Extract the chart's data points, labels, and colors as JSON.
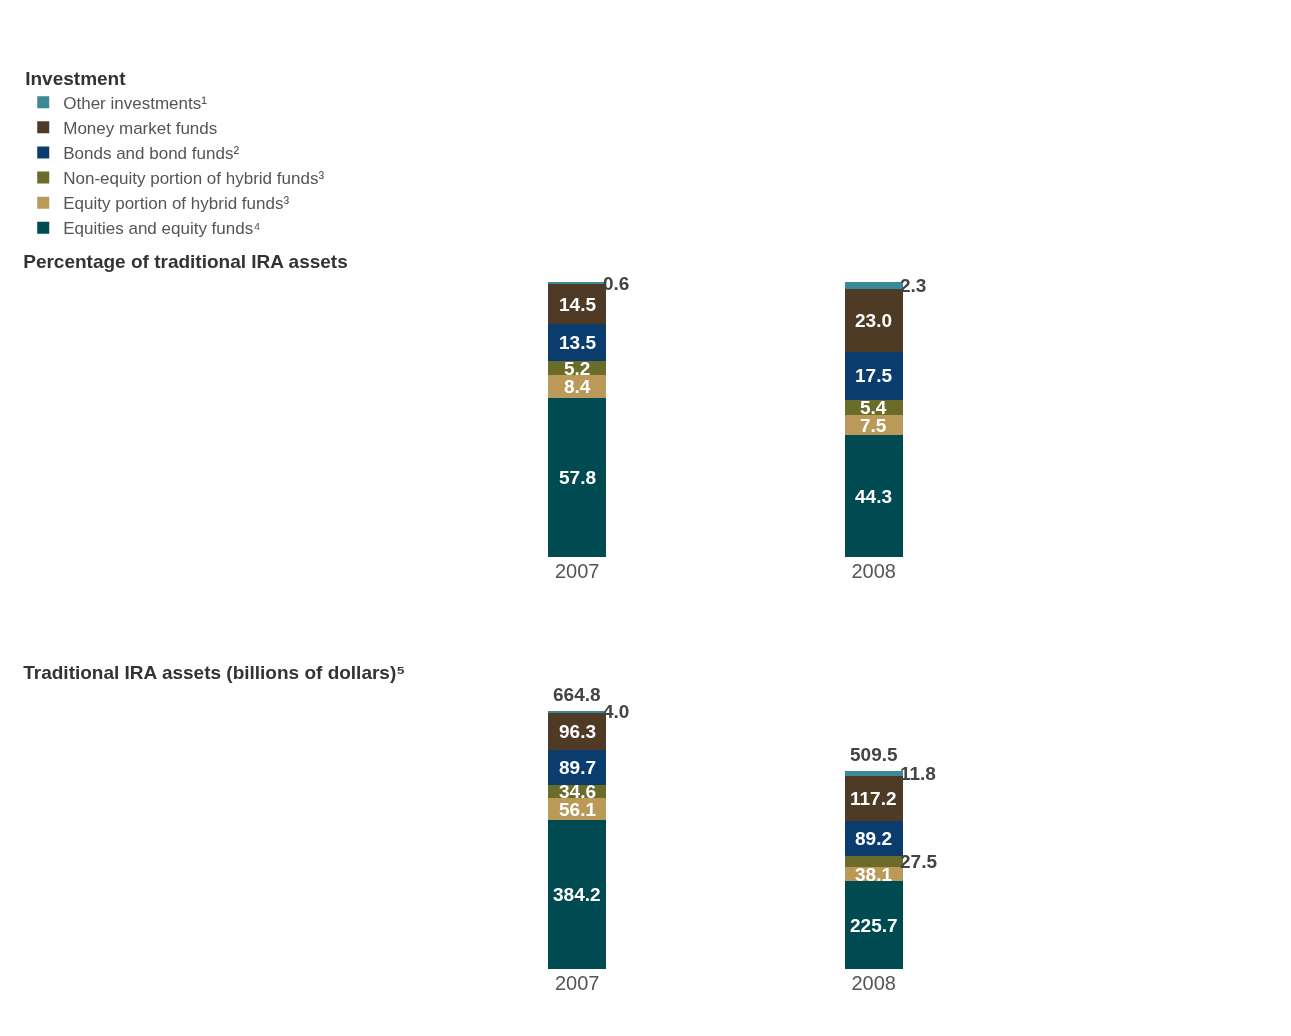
{
  "chart_data": [
    {
      "type": "bar",
      "title": "Percentage of traditional IRA assets",
      "legend_title": "Investment",
      "legend": "top left",
      "stacked": true,
      "categories": [
        "2007",
        "2008"
      ],
      "tick_labels": "x",
      "grid": false,
      "series": [
        {
          "name": "Equities and equity funds⁴",
          "color": "#004a52",
          "values": [
            57.8,
            44.3
          ],
          "value_labels": [
            "57.8",
            "44.3"
          ]
        },
        {
          "name": "Equity portion of hybrid funds³",
          "color": "#bb9a59",
          "values": [
            8.4,
            7.5
          ],
          "value_labels": [
            "8.4",
            "7.5"
          ]
        },
        {
          "name": "Non-equity portion of hybrid funds³",
          "color": "#6b6b2a",
          "values": [
            5.2,
            5.4
          ],
          "value_labels": [
            "5.2",
            "5.4"
          ]
        },
        {
          "name": "Bonds and bond funds²",
          "color": "#0a3d6e",
          "values": [
            13.5,
            17.5
          ],
          "value_labels": [
            "13.5",
            "17.5"
          ]
        },
        {
          "name": "Money market funds",
          "color": "#4f3a25",
          "values": [
            14.5,
            23.0
          ],
          "value_labels": [
            "14.5",
            "23.0"
          ]
        },
        {
          "name": "Other investments¹",
          "color": "#3b8a96",
          "values": [
            0.6,
            2.3
          ],
          "value_labels": [
            "0.6",
            "2.3"
          ]
        }
      ]
    },
    {
      "type": "bar",
      "title": "Traditional IRA assets (billions of dollars)⁵",
      "legend": false,
      "stacked": true,
      "categories": [
        "2007",
        "2008"
      ],
      "tick_labels": "x",
      "grid": false,
      "totals": [
        "664.8",
        "509.5"
      ],
      "series": [
        {
          "color": "#004a52",
          "values": [
            384.2,
            225.7
          ],
          "value_labels": [
            "384.2",
            "225.7"
          ]
        },
        {
          "color": "#bb9a59",
          "values": [
            56.1,
            38.1
          ],
          "value_labels": [
            "56.1",
            "38.1"
          ]
        },
        {
          "color": "#6b6b2a",
          "values": [
            34.6,
            27.5
          ],
          "value_labels": [
            "34.6",
            "27.5"
          ]
        },
        {
          "color": "#0a3d6e",
          "values": [
            89.7,
            89.2
          ],
          "value_labels": [
            "89.7",
            "89.2"
          ]
        },
        {
          "color": "#4f3a25",
          "values": [
            96.3,
            117.2
          ],
          "value_labels": [
            "96.3",
            "117.2"
          ]
        },
        {
          "color": "#3b8a96",
          "values": [
            4.0,
            11.8
          ],
          "value_labels": [
            "4.0",
            "11.8"
          ]
        }
      ]
    }
  ]
}
